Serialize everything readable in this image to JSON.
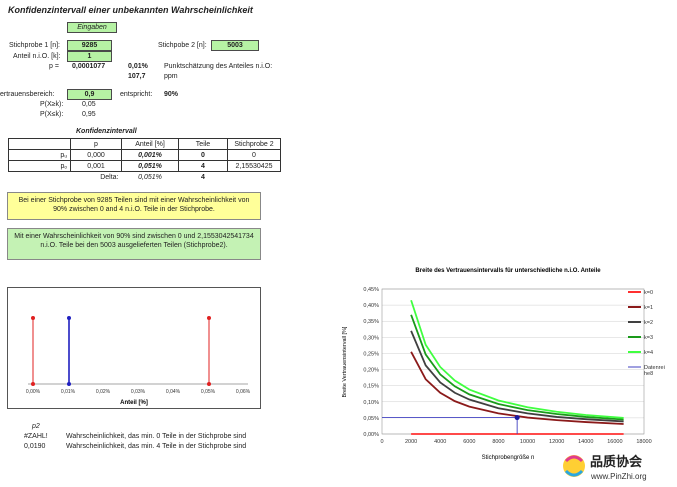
{
  "title": "Konfidenzintervall einer unbekannten Wahrscheinlichkeit",
  "inputs_button": "Eingaben",
  "stichprobe1": {
    "label": "Stichprobe 1 [n]:",
    "value": "9285"
  },
  "anteil": {
    "label": "Anteil n.i.O. [k]:",
    "value": "1"
  },
  "stichprobe2": {
    "label": "Stichpobe 2 [n]:",
    "value": "5003"
  },
  "p_row": {
    "label": "p =",
    "value": "0,0001077",
    "percent": "0,01%",
    "desc": "Punktschätzung des Anteiles n.i.O:"
  },
  "ppm_row": {
    "value": "107,7",
    "unit": "ppm"
  },
  "vertrauen": {
    "label": "ertrauensbereich:",
    "value": "0,9",
    "entspricht_label": "entspricht:",
    "entspricht_value": "90%"
  },
  "pxk1": {
    "label": "P(X≥k):",
    "value": "0,05"
  },
  "pxk2": {
    "label": "P(X≤k):",
    "value": "0,95"
  },
  "ki_table": {
    "caption": "Konfidenzintervall",
    "headers": [
      "p",
      "Anteil [%]",
      "Teile",
      "Stichprobe 2"
    ],
    "rows": [
      {
        "label": "pᵤ",
        "p": "0,000",
        "anteil": "0,001%",
        "teile": "0",
        "stich2": "0"
      },
      {
        "label": "pₒ",
        "p": "0,001",
        "anteil": "0,051%",
        "teile": "4",
        "stich2": "2,15530425"
      }
    ],
    "delta": {
      "label": "Delta:",
      "anteil": "0,051%",
      "teile": "4"
    }
  },
  "note_yellow": "Bei einer Stichprobe von 9285 Teilen sind mit einer Wahrscheinlichkeit von 90% zwischen 0 and 4 n.i.O. Teile in der Stichprobe.",
  "note_green": "Mit einer Wahrscheinlichkeit von 90% sind zwischen 0 und 2,1553042541734 n.i.O. Teile bei den 5003 ausgelieferten Teilen (Stichprobe2).",
  "left_chart": {
    "xlabel": "Anteil [%]",
    "x_ticks": [
      "0,00%",
      "0,01%",
      "0,02%",
      "0,03%",
      "0,04%",
      "0,05%",
      "0,06%"
    ],
    "colors": {
      "red": "#e02020",
      "blue": "#2020c0"
    }
  },
  "bottom_rows": {
    "header": "p2",
    "r1_value": "#ZAHL!",
    "r1_text": "Wahrscheinlichkeit, das min. 0 Teile in der Stichprobe sind",
    "r2_value": "0,0190",
    "r2_text": "Wahrscheinlichkeit, das min. 4 Teile in der Stichprobe sind"
  },
  "chart_data": {
    "type": "line",
    "title": "Breite des Vertrauensintervalls für unterschiedliche n.i.O. Anteile",
    "xlabel": "Stichprobengröße n",
    "ylabel": "Breite Vertrauensintervall [%]",
    "xlim": [
      0,
      18000
    ],
    "ylim": [
      0,
      0.45
    ],
    "x_ticks": [
      "0",
      "2000",
      "4000",
      "6000",
      "8000",
      "10000",
      "12000",
      "14000",
      "16000",
      "18000"
    ],
    "y_ticks": [
      "0,00%",
      "0,05%",
      "0,10%",
      "0,15%",
      "0,20%",
      "0,25%",
      "0,30%",
      "0,35%",
      "0,40%",
      "0,45%"
    ],
    "x": [
      2000,
      3000,
      4000,
      5000,
      6000,
      8000,
      10000,
      12000,
      14000,
      16600
    ],
    "series": [
      {
        "name": "k=0",
        "color": "#ff3030",
        "values": [
          0,
          0,
          0,
          0,
          0,
          0,
          0,
          0,
          0,
          0
        ]
      },
      {
        "name": "k=1",
        "color": "#8b1a1a",
        "values": [
          0.255,
          0.17,
          0.128,
          0.102,
          0.085,
          0.064,
          0.051,
          0.043,
          0.037,
          0.031
        ]
      },
      {
        "name": "k=2",
        "color": "#404040",
        "values": [
          0.32,
          0.213,
          0.16,
          0.128,
          0.107,
          0.08,
          0.064,
          0.053,
          0.046,
          0.039
        ]
      },
      {
        "name": "k=3",
        "color": "#1a9a1a",
        "values": [
          0.37,
          0.247,
          0.185,
          0.148,
          0.123,
          0.093,
          0.074,
          0.062,
          0.053,
          0.045
        ]
      },
      {
        "name": "k=4",
        "color": "#40ff40",
        "values": [
          0.415,
          0.277,
          0.208,
          0.166,
          0.138,
          0.104,
          0.083,
          0.069,
          0.059,
          0.05
        ]
      }
    ],
    "datenreihe": {
      "name": "Datenrei he8",
      "color": "#4040c0",
      "x": 9285,
      "y": 0.051
    },
    "legend": "right"
  }
}
